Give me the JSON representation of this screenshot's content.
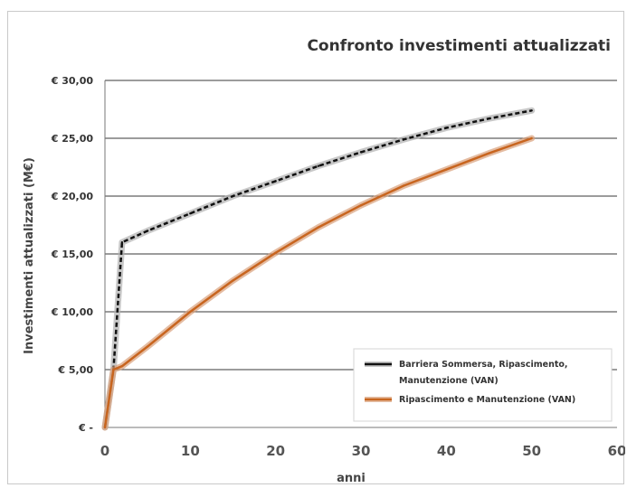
{
  "chart_data": {
    "type": "line",
    "title": "Confronto investimenti attualizzati",
    "xlabel": "anni",
    "ylabel": "Investimenti attualizzati (M€)",
    "xlim": [
      0,
      60
    ],
    "ylim": [
      0,
      30
    ],
    "x_ticks": [
      "0",
      "10",
      "20",
      "30",
      "40",
      "50",
      "60"
    ],
    "y_ticks": [
      "€ -",
      "€ 5,00",
      "€ 10,00",
      "€ 15,00",
      "€ 20,00",
      "€ 25,00",
      "€ 30,00"
    ],
    "grid": "horizontal",
    "legend_position": "bottom-right",
    "series": [
      {
        "name": "Barriera Sommersa, Ripascimento, Manutenzione (VAN)",
        "legend_lines": [
          "Barriera Sommersa, Ripascimento,",
          "Manutenzione (VAN)"
        ],
        "color": "#111111",
        "halo": "#b0b0b0",
        "x": [
          0,
          1,
          2,
          5,
          10,
          15,
          20,
          25,
          30,
          35,
          40,
          45,
          50
        ],
        "y": [
          0,
          5.0,
          16.0,
          17.0,
          18.5,
          20.0,
          21.3,
          22.6,
          23.8,
          24.9,
          25.9,
          26.7,
          27.4
        ]
      },
      {
        "name": "Ripascimento e Manutenzione (VAN)",
        "legend_lines": [
          "Ripascimento e Manutenzione (VAN)"
        ],
        "color": "#c8651f",
        "halo": "#d9a07a",
        "x": [
          0,
          1,
          2,
          5,
          10,
          15,
          20,
          25,
          30,
          35,
          40,
          45,
          50
        ],
        "y": [
          0,
          5.0,
          5.3,
          7.0,
          10.0,
          12.7,
          15.1,
          17.3,
          19.2,
          20.9,
          22.3,
          23.7,
          25.0
        ]
      }
    ]
  }
}
